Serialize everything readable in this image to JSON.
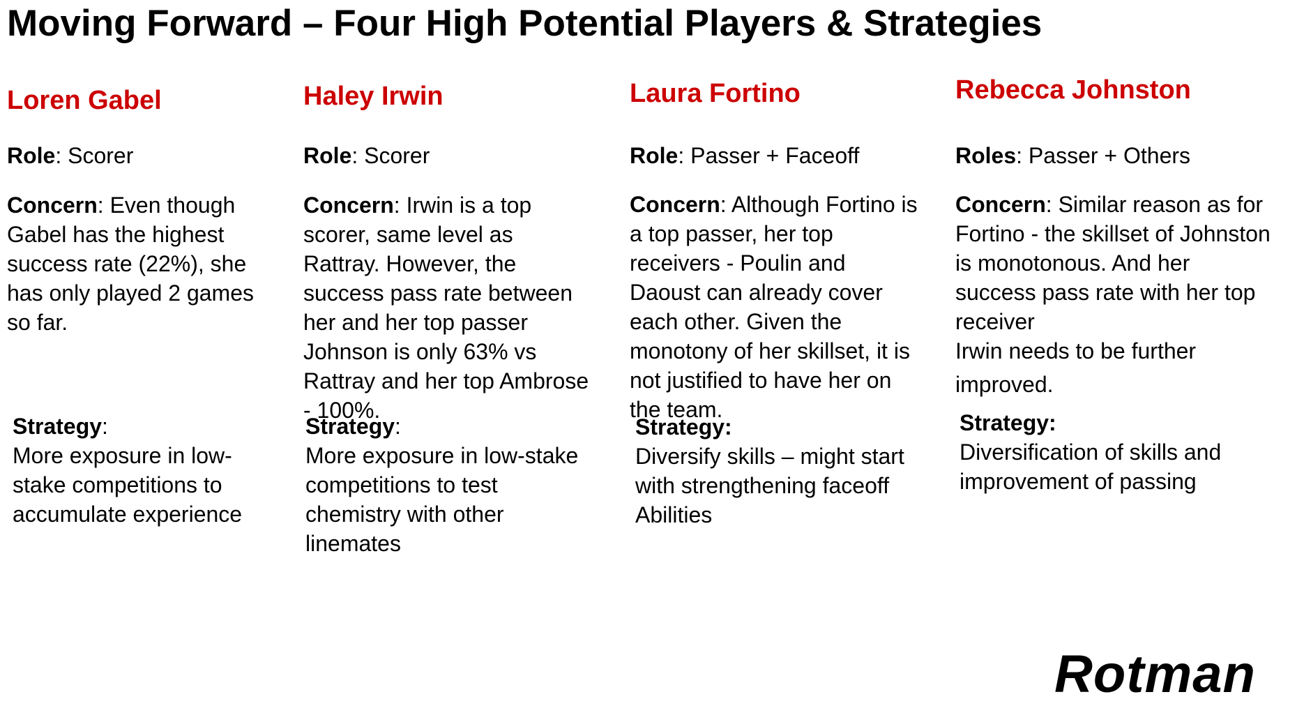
{
  "title": "Moving Forward – Four High Potential Players & Strategies",
  "accent_color": "#cc0000",
  "players": [
    {
      "name": "Loren Gabel",
      "role_label": "Role",
      "role_value": "Scorer",
      "concern_label": "Concern",
      "concern_lines": [
        ": Even though",
        "Gabel has the highest",
        "success rate (22%), she",
        "has only played 2 games",
        "so far."
      ],
      "strategy_label": "Strategy",
      "strategy_suffix": ":",
      "strategy_lines": [
        "More exposure in low-",
        "stake competitions to",
        "accumulate experience"
      ]
    },
    {
      "name": "Haley Irwin",
      "role_label": "Role",
      "role_value": "Scorer",
      "concern_label": "Concern",
      "concern_lines": [
        ": Irwin is a top",
        "scorer, same level as",
        "Rattray. However, the",
        "success pass rate between",
        "her and her top passer",
        "Johnson is only 63% vs",
        "Rattray and her top Ambrose",
        "- 100%."
      ],
      "strategy_label": "Strategy",
      "strategy_suffix": ":",
      "strategy_lines": [
        "More exposure in low-stake",
        "competitions to test",
        "chemistry with other",
        "linemates"
      ]
    },
    {
      "name": "Laura Fortino",
      "role_label": "Role",
      "role_value": "Passer + Faceoff",
      "concern_label": "Concern",
      "concern_lines": [
        ": Although Fortino is",
        "a top passer, her top",
        "receivers - Poulin and",
        "Daoust can already cover",
        "each other. Given the",
        "monotony of her skillset, it is",
        "not justified to have her on",
        "the team."
      ],
      "strategy_label": "Strategy:",
      "strategy_suffix": "",
      "strategy_lines": [
        "Diversify skills – might start",
        "with strengthening faceoff",
        "Abilities"
      ]
    },
    {
      "name": "Rebecca Johnston",
      "role_label": "Roles",
      "role_value": "Passer + Others",
      "concern_label": "Concern",
      "concern_lines": [
        ": Similar reason as for",
        "Fortino - the skillset of Johnston",
        "is monotonous. And her",
        "success pass rate with her top",
        "receiver",
        "Irwin needs to be further",
        "improved."
      ],
      "strategy_label": "Strategy:",
      "strategy_suffix": "",
      "strategy_lines": [
        "Diversification of skills and",
        "improvement of passing"
      ]
    }
  ],
  "logo": "Rotman"
}
